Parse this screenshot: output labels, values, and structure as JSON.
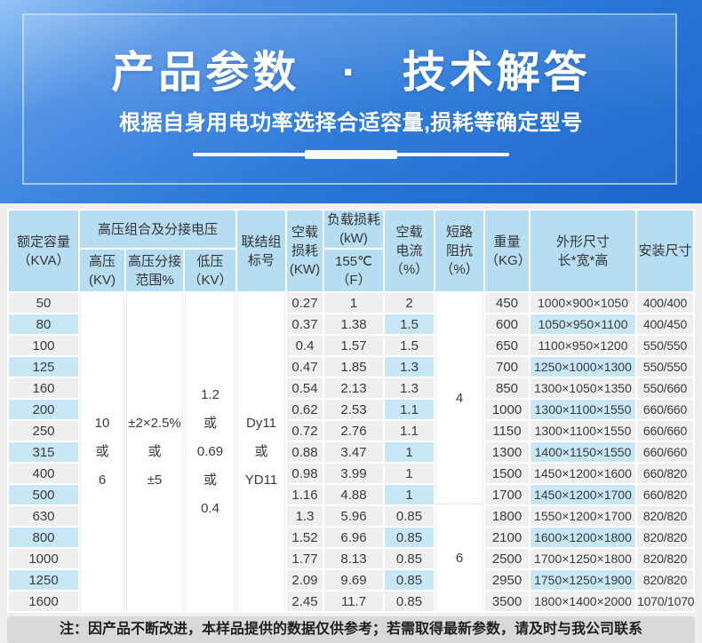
{
  "banner": {
    "title": "产品参数 · 技术解答",
    "subtitle": "根据自身用电功率选择合适容量,损耗等确定型号"
  },
  "table": {
    "header": {
      "capacity": "额定容量\n（KVA）",
      "hv_group": "高压组合及分接电压",
      "hv": "高压\n(KV)",
      "tap": "高压分接\n范围%",
      "lv": "低压\n（KV）",
      "connection": "联结组\n标号",
      "noload_loss": "空载\n损耗\n(KW)",
      "load_loss_top": "负载损耗\n(kW)",
      "load_loss_bottom": "155℃\n（F）",
      "noload_current": "空载\n电流\n（%）",
      "impedance": "短路\n阻抗\n（%）",
      "weight": "重量\n（KG）",
      "dimensions": "外形尺寸\n长*宽*高",
      "install": "安装尺寸"
    },
    "merged": {
      "hv_lines": [
        "10",
        "或",
        "6"
      ],
      "tap_lines": [
        "±2×2.5%",
        "或",
        "±5"
      ],
      "lv_lines": [
        "1.2",
        "或",
        "0.69",
        "或",
        "0.4"
      ],
      "conn_lines": [
        "Dy11",
        "或",
        "YD11"
      ],
      "impedance_group1": "4",
      "impedance_group2": "6"
    },
    "rows": [
      {
        "capacity": "50",
        "noload_loss": "0.27",
        "load_loss": "1",
        "noload_current": "2",
        "weight": "450",
        "dims": "1000×900×1050",
        "install": "400/400"
      },
      {
        "capacity": "80",
        "noload_loss": "0.37",
        "load_loss": "1.38",
        "noload_current": "1.5",
        "weight": "600",
        "dims": "1050×950×1100",
        "install": "400/450"
      },
      {
        "capacity": "100",
        "noload_loss": "0.4",
        "load_loss": "1.57",
        "noload_current": "1.5",
        "weight": "650",
        "dims": "1100×950×1200",
        "install": "550/550"
      },
      {
        "capacity": "125",
        "noload_loss": "0.47",
        "load_loss": "1.85",
        "noload_current": "1.3",
        "weight": "700",
        "dims": "1250×1000×1300",
        "install": "550/550"
      },
      {
        "capacity": "160",
        "noload_loss": "0.54",
        "load_loss": "2.13",
        "noload_current": "1.3",
        "weight": "850",
        "dims": "1300×1050×1350",
        "install": "550/660"
      },
      {
        "capacity": "200",
        "noload_loss": "0.62",
        "load_loss": "2.53",
        "noload_current": "1.1",
        "weight": "1000",
        "dims": "1300×1100×1550",
        "install": "660/660"
      },
      {
        "capacity": "250",
        "noload_loss": "0.72",
        "load_loss": "2.76",
        "noload_current": "1.1",
        "weight": "1150",
        "dims": "1300×1100×1550",
        "install": "660/660"
      },
      {
        "capacity": "315",
        "noload_loss": "0.88",
        "load_loss": "3.47",
        "noload_current": "1",
        "weight": "1300",
        "dims": "1400×1150×1550",
        "install": "660/660"
      },
      {
        "capacity": "400",
        "noload_loss": "0.98",
        "load_loss": "3.99",
        "noload_current": "1",
        "weight": "1500",
        "dims": "1450×1200×1600",
        "install": "660/820"
      },
      {
        "capacity": "500",
        "noload_loss": "1.16",
        "load_loss": "4.88",
        "noload_current": "1",
        "weight": "1700",
        "dims": "1450×1200×1700",
        "install": "660/820"
      },
      {
        "capacity": "630",
        "noload_loss": "1.3",
        "load_loss": "5.96",
        "noload_current": "0.85",
        "weight": "1800",
        "dims": "1550×1200×1700",
        "install": "820/820"
      },
      {
        "capacity": "800",
        "noload_loss": "1.52",
        "load_loss": "6.96",
        "noload_current": "0.85",
        "weight": "2100",
        "dims": "1600×1200×1800",
        "install": "820/820"
      },
      {
        "capacity": "1000",
        "noload_loss": "1.77",
        "load_loss": "8.13",
        "noload_current": "0.85",
        "weight": "2500",
        "dims": "1700×1250×1800",
        "install": "820/820"
      },
      {
        "capacity": "1250",
        "noload_loss": "2.09",
        "load_loss": "9.69",
        "noload_current": "0.85",
        "weight": "2950",
        "dims": "1750×1250×1900",
        "install": "820/820"
      },
      {
        "capacity": "1600",
        "noload_loss": "2.45",
        "load_loss": "11.7",
        "noload_current": "0.85",
        "weight": "3500",
        "dims": "1800×1400×2000",
        "install": "1070/1070"
      }
    ]
  },
  "note": "注：因产品不断改进，本样品提供的数据仅供参考；若需取得最新参数，请及时与我公司联系",
  "colors": {
    "banner_gradient_top": "#93c3f6",
    "banner_gradient_bottom": "#1b66cd",
    "header_cell_blue": "#b7ddf2",
    "row_stripe_gray": "#efefef",
    "row_stripe_blue": "#c7e7f7",
    "note_bar_gray": "#d9d9d9",
    "page_background": "#f0efed"
  }
}
